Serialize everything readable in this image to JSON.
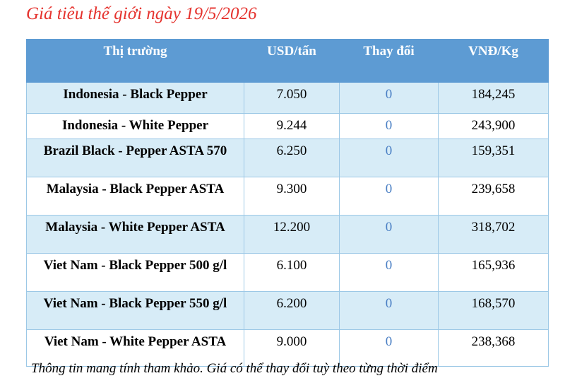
{
  "title": "Giá tiêu thế giới ngày 19/5/2026",
  "table": {
    "headers": [
      "Thị trường",
      "USD/tấn",
      "Thay đổi",
      "VNĐ/Kg"
    ],
    "rows": [
      [
        "Indonesia - Black Pepper",
        "7.050",
        "0",
        "184,245"
      ],
      [
        "Indonesia - White Pepper",
        "9.244",
        "0",
        "243,900"
      ],
      [
        "Brazil Black - Pepper ASTA 570",
        "6.250",
        "0",
        "159,351"
      ],
      [
        "Malaysia - Black Pepper ASTA",
        "9.300",
        "0",
        "239,658"
      ],
      [
        "Malaysia - White Pepper ASTA",
        "12.200",
        "0",
        "318,702"
      ],
      [
        "Viet Nam - Black Pepper 500 g/l",
        "6.100",
        "0",
        "165,936"
      ],
      [
        "Viet Nam - Black Pepper 550 g/l",
        "6.200",
        "0",
        "168,570"
      ],
      [
        "Viet Nam - White Pepper ASTA",
        "9.000",
        "0",
        "238,368"
      ]
    ]
  },
  "note": "Thông tin mang tính tham khảo. Giá có thể thay đổi tuỳ theo từng thời điểm"
}
